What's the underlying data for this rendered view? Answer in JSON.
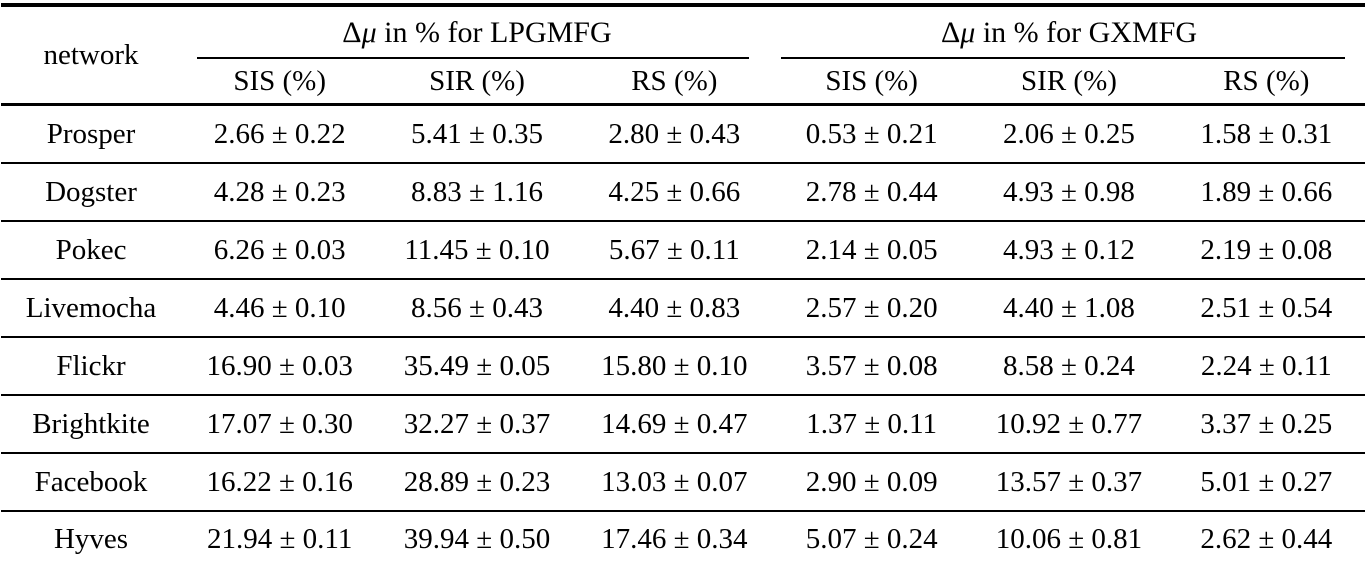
{
  "page": {
    "background_color": "#ffffff",
    "text_color": "#000000",
    "rule_color": "#000000"
  },
  "table": {
    "header": {
      "network_label": "network",
      "groups": [
        {
          "delta": "Δ",
          "mu": "μ",
          "rest": " in % for LPGMFG",
          "subcols": [
            "SIS (%)",
            "SIR (%)",
            "RS (%)"
          ]
        },
        {
          "delta": "Δ",
          "mu": "μ",
          "rest": " in % for GXMFG",
          "subcols": [
            "SIS (%)",
            "SIR (%)",
            "RS (%)"
          ]
        }
      ]
    },
    "rows": [
      {
        "network": "Prosper",
        "values": [
          "2.66 ± 0.22",
          "5.41 ± 0.35",
          "2.80 ± 0.43",
          "0.53 ± 0.21",
          "2.06 ± 0.25",
          "1.58 ± 0.31"
        ]
      },
      {
        "network": "Dogster",
        "values": [
          "4.28 ± 0.23",
          "8.83 ± 1.16",
          "4.25 ± 0.66",
          "2.78 ± 0.44",
          "4.93 ± 0.98",
          "1.89 ± 0.66"
        ]
      },
      {
        "network": "Pokec",
        "values": [
          "6.26 ± 0.03",
          "11.45 ± 0.10",
          "5.67 ± 0.11",
          "2.14 ± 0.05",
          "4.93 ± 0.12",
          "2.19 ± 0.08"
        ]
      },
      {
        "network": "Livemocha",
        "values": [
          "4.46 ± 0.10",
          "8.56 ± 0.43",
          "4.40 ± 0.83",
          "2.57 ± 0.20",
          "4.40 ± 1.08",
          "2.51 ± 0.54"
        ]
      },
      {
        "network": "Flickr",
        "values": [
          "16.90 ± 0.03",
          "35.49 ± 0.05",
          "15.80 ± 0.10",
          "3.57 ± 0.08",
          "8.58 ± 0.24",
          "2.24 ± 0.11"
        ]
      },
      {
        "network": "Brightkite",
        "values": [
          "17.07 ± 0.30",
          "32.27 ± 0.37",
          "14.69 ± 0.47",
          "1.37 ± 0.11",
          "10.92 ± 0.77",
          "3.37 ± 0.25"
        ]
      },
      {
        "network": "Facebook",
        "values": [
          "16.22 ± 0.16",
          "28.89 ± 0.23",
          "13.03 ± 0.07",
          "2.90 ± 0.09",
          "13.57 ± 0.37",
          "5.01 ± 0.27"
        ]
      },
      {
        "network": "Hyves",
        "values": [
          "21.94 ± 0.11",
          "39.94 ± 0.50",
          "17.46 ± 0.34",
          "5.07 ± 0.24",
          "10.06 ± 0.81",
          "2.62 ± 0.44"
        ]
      }
    ]
  }
}
